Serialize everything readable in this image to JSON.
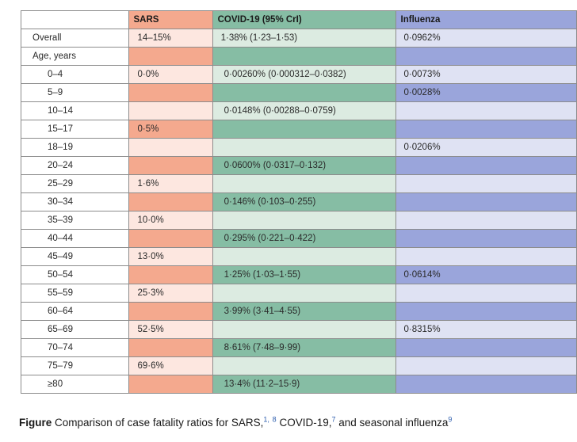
{
  "table": {
    "headers": [
      "",
      "SARS",
      "COVID-19 (95% CrI)",
      "Influenza"
    ],
    "rows": [
      {
        "label": "Overall",
        "sars": "14–15%",
        "covid": "1·38% (1·23–1·53)",
        "flu": "0·0962%"
      },
      {
        "label": "Age, years",
        "sars": "",
        "covid": "",
        "flu": ""
      },
      {
        "label": "0–4",
        "sars": "0·0%",
        "covid": "0·00260% (0·000312–0·0382)",
        "flu": "0·0073%"
      },
      {
        "label": "5–9",
        "sars": "",
        "covid": "",
        "flu": "0·0028%"
      },
      {
        "label": "10–14",
        "sars": "",
        "covid": "0·0148% (0·00288–0·0759)",
        "flu": ""
      },
      {
        "label": "15–17",
        "sars": "0·5%",
        "covid": "",
        "flu": ""
      },
      {
        "label": "18–19",
        "sars": "",
        "covid": "",
        "flu": "0·0206%"
      },
      {
        "label": "20–24",
        "sars": "",
        "covid": "0·0600% (0·0317–0·132)",
        "flu": ""
      },
      {
        "label": "25–29",
        "sars": "1·6%",
        "covid": "",
        "flu": ""
      },
      {
        "label": "30–34",
        "sars": "",
        "covid": "0·146% (0·103–0·255)",
        "flu": ""
      },
      {
        "label": "35–39",
        "sars": "10·0%",
        "covid": "",
        "flu": ""
      },
      {
        "label": "40–44",
        "sars": "",
        "covid": "0·295% (0·221–0·422)",
        "flu": ""
      },
      {
        "label": "45–49",
        "sars": "13·0%",
        "covid": "",
        "flu": ""
      },
      {
        "label": "50–54",
        "sars": "",
        "covid": "1·25% (1·03–1·55)",
        "flu": "0·0614%"
      },
      {
        "label": "55–59",
        "sars": "25·3%",
        "covid": "",
        "flu": ""
      },
      {
        "label": "60–64",
        "sars": "",
        "covid": "3·99% (3·41–4·55)",
        "flu": ""
      },
      {
        "label": "65–69",
        "sars": "52·5%",
        "covid": "",
        "flu": "0·8315%"
      },
      {
        "label": "70–74",
        "sars": "",
        "covid": "8·61% (7·48–9·99)",
        "flu": ""
      },
      {
        "label": "75–79",
        "sars": "69·6%",
        "covid": "",
        "flu": ""
      },
      {
        "label": "≥80",
        "sars": "",
        "covid": "13·4% (11·2–15·9)",
        "flu": ""
      }
    ]
  },
  "caption": {
    "prefix": "Figure",
    "text_1": "Comparison of case fatality ratios for SARS,",
    "ref_1": "1,",
    "ref_2": "8",
    "text_2": "COVID-19,",
    "ref_3": "7",
    "text_3": "and seasonal influenza",
    "ref_4": "9"
  },
  "colors": {
    "sars_dark": "#f4a98e",
    "sars_light": "#fde7e0",
    "covid_dark": "#86bda4",
    "covid_light": "#dcebe1",
    "flu_dark": "#9aa5db",
    "flu_light": "#dfe2f3"
  }
}
